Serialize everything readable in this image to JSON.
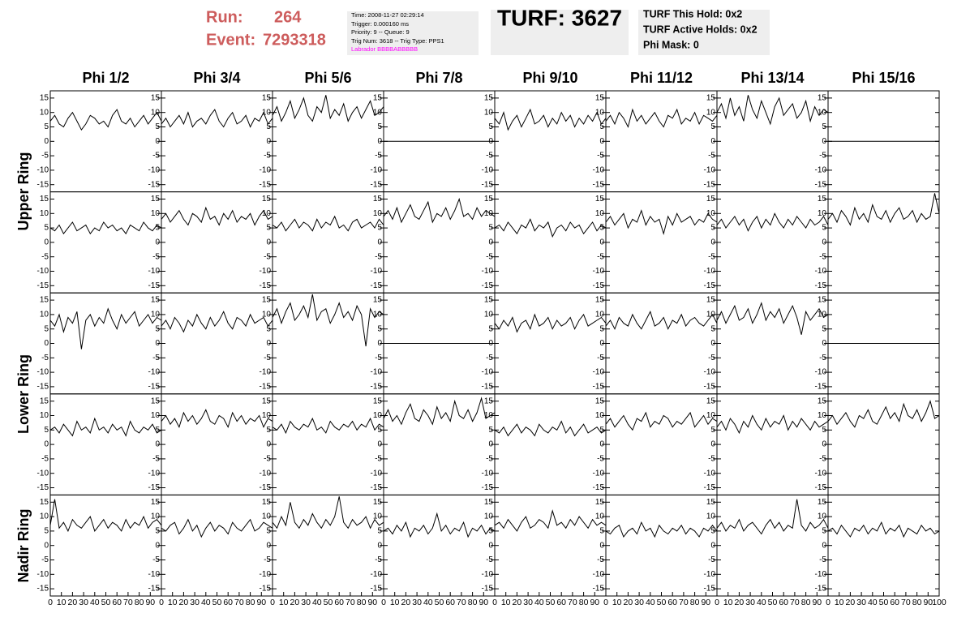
{
  "header": {
    "run_label": "Run:",
    "run": "264",
    "event_label": "Event:",
    "event": "7293318",
    "info": [
      "Time: 2008-11-27 02:29:14",
      "Trigger: 0.000160 ms",
      "Priority: 9 -- Queue: 9",
      "Trig Num: 3618 -- Trig Type: PPS1"
    ],
    "labrador": "Labrador BBBBABBBBB",
    "turf": "TURF: 3627",
    "turf_info": [
      "TURF This Hold: 0x2",
      "TURF Active Holds: 0x2",
      "Phi Mask: 0"
    ]
  },
  "chart_data": {
    "type": "line",
    "color": "#000000",
    "columns": [
      "Phi 1/2",
      "Phi 3/4",
      "Phi 5/6",
      "Phi 7/8",
      "Phi 9/10",
      "Phi 11/12",
      "Phi 13/14",
      "Phi 15/16"
    ],
    "row_labels": [
      "Upper Ring",
      "Lower Ring",
      "Nadir Ring"
    ],
    "xlim": [
      0,
      100
    ],
    "xticks": [
      0,
      10,
      20,
      30,
      40,
      50,
      60,
      70,
      80,
      90,
      100
    ],
    "ylim": [
      -17.5,
      17.5
    ],
    "yticks": [
      -15,
      -10,
      -5,
      0,
      5,
      10,
      15
    ],
    "x": [
      0,
      4,
      8,
      12,
      16,
      20,
      24,
      28,
      32,
      36,
      40,
      44,
      48,
      52,
      56,
      60,
      64,
      68,
      72,
      76,
      80,
      84,
      88,
      92,
      96,
      100
    ],
    "panels": [
      [
        [
          7,
          9,
          6,
          5,
          8,
          10,
          7,
          4,
          6,
          9,
          8,
          6,
          7,
          5,
          9,
          11,
          7,
          6,
          8,
          5,
          7,
          9,
          6,
          8,
          10,
          7
        ],
        [
          6,
          8,
          5,
          7,
          9,
          6,
          10,
          5,
          7,
          8,
          6,
          9,
          11,
          7,
          5,
          8,
          10,
          6,
          7,
          9,
          5,
          8,
          7,
          10,
          6,
          8
        ],
        [
          9,
          12,
          7,
          10,
          14,
          8,
          11,
          15,
          9,
          7,
          12,
          10,
          16,
          8,
          11,
          9,
          13,
          7,
          10,
          12,
          8,
          11,
          14,
          9,
          10,
          12
        ],
        [
          0,
          0,
          0,
          0,
          0,
          0,
          0,
          0,
          0,
          0,
          0,
          0,
          0,
          0,
          0,
          0,
          0,
          0,
          0,
          0,
          0,
          0,
          0,
          0,
          0,
          0
        ],
        [
          8,
          6,
          10,
          4,
          7,
          9,
          5,
          8,
          11,
          6,
          7,
          9,
          5,
          8,
          6,
          10,
          7,
          9,
          5,
          8,
          6,
          9,
          7,
          10,
          6,
          8
        ],
        [
          7,
          9,
          6,
          10,
          8,
          5,
          11,
          7,
          9,
          6,
          8,
          10,
          7,
          5,
          9,
          8,
          11,
          6,
          8,
          7,
          10,
          6,
          9,
          8,
          7,
          9
        ],
        [
          10,
          13,
          8,
          15,
          9,
          12,
          7,
          16,
          11,
          8,
          14,
          10,
          6,
          12,
          15,
          9,
          11,
          13,
          8,
          10,
          14,
          7,
          12,
          9,
          11,
          10
        ],
        [
          0,
          0,
          0,
          0,
          0,
          0,
          0,
          0,
          0,
          0,
          0,
          0,
          0,
          0,
          0,
          0,
          0,
          0,
          0,
          0,
          0,
          0,
          0,
          0,
          0,
          0
        ]
      ],
      [
        [
          5,
          4,
          6,
          3,
          5,
          7,
          4,
          5,
          6,
          3,
          5,
          4,
          7,
          5,
          6,
          4,
          5,
          3,
          6,
          5,
          4,
          7,
          5,
          4,
          6,
          5
        ],
        [
          8,
          10,
          7,
          9,
          11,
          8,
          6,
          10,
          9,
          7,
          12,
          8,
          9,
          6,
          10,
          8,
          11,
          7,
          9,
          8,
          10,
          6,
          9,
          11,
          8,
          9
        ],
        [
          6,
          5,
          7,
          4,
          6,
          8,
          5,
          7,
          6,
          4,
          8,
          5,
          7,
          6,
          9,
          5,
          6,
          4,
          7,
          8,
          5,
          6,
          7,
          5,
          8,
          6
        ],
        [
          9,
          11,
          8,
          12,
          7,
          10,
          13,
          9,
          8,
          11,
          14,
          7,
          10,
          9,
          12,
          8,
          11,
          15,
          9,
          10,
          8,
          12,
          9,
          11,
          10,
          9
        ],
        [
          5,
          6,
          4,
          7,
          5,
          3,
          6,
          5,
          8,
          4,
          6,
          5,
          7,
          2,
          5,
          6,
          4,
          7,
          5,
          6,
          3,
          5,
          7,
          4,
          6,
          5
        ],
        [
          7,
          9,
          6,
          8,
          10,
          5,
          8,
          7,
          11,
          6,
          9,
          7,
          8,
          3,
          9,
          6,
          10,
          7,
          8,
          9,
          6,
          8,
          7,
          10,
          8,
          7
        ],
        [
          6,
          8,
          5,
          7,
          9,
          6,
          8,
          4,
          7,
          9,
          5,
          8,
          6,
          10,
          7,
          5,
          8,
          6,
          9,
          7,
          5,
          8,
          6,
          7,
          9,
          6
        ],
        [
          8,
          10,
          7,
          11,
          9,
          6,
          12,
          8,
          10,
          7,
          13,
          9,
          8,
          11,
          7,
          10,
          12,
          8,
          9,
          11,
          7,
          10,
          8,
          9,
          17,
          10
        ]
      ],
      [
        [
          8,
          6,
          10,
          4,
          9,
          7,
          11,
          -2,
          8,
          10,
          6,
          9,
          7,
          12,
          8,
          5,
          10,
          7,
          9,
          11,
          6,
          8,
          10,
          7,
          9,
          8
        ],
        [
          6,
          8,
          5,
          9,
          7,
          4,
          8,
          6,
          10,
          7,
          5,
          9,
          6,
          8,
          11,
          7,
          5,
          9,
          8,
          6,
          10,
          7,
          8,
          9,
          6,
          8
        ],
        [
          9,
          12,
          7,
          11,
          14,
          8,
          10,
          13,
          9,
          17,
          8,
          11,
          12,
          7,
          10,
          14,
          9,
          11,
          8,
          13,
          10,
          -1,
          12,
          9,
          11,
          10
        ],
        [
          0,
          0,
          0,
          0,
          0,
          0,
          0,
          0,
          0,
          0,
          0,
          0,
          0,
          0,
          0,
          0,
          0,
          0,
          0,
          0,
          0,
          0,
          0,
          0,
          0,
          0
        ],
        [
          7,
          5,
          8,
          6,
          9,
          4,
          7,
          8,
          5,
          10,
          6,
          7,
          9,
          5,
          8,
          6,
          7,
          9,
          5,
          8,
          10,
          6,
          7,
          8,
          9,
          7
        ],
        [
          6,
          8,
          5,
          9,
          7,
          6,
          10,
          7,
          5,
          8,
          11,
          6,
          7,
          9,
          5,
          8,
          7,
          10,
          6,
          8,
          9,
          7,
          6,
          8,
          10,
          7
        ],
        [
          8,
          11,
          7,
          10,
          13,
          8,
          9,
          12,
          7,
          10,
          14,
          8,
          11,
          9,
          12,
          7,
          10,
          13,
          9,
          3,
          11,
          8,
          10,
          12,
          9,
          10
        ],
        [
          0,
          0,
          0,
          0,
          0,
          0,
          0,
          0,
          0,
          0,
          0,
          0,
          0,
          0,
          0,
          0,
          0,
          0,
          0,
          0,
          0,
          0,
          0,
          0,
          0,
          0
        ]
      ],
      [
        [
          5,
          6,
          4,
          7,
          5,
          3,
          8,
          5,
          6,
          4,
          9,
          5,
          6,
          4,
          7,
          5,
          6,
          3,
          8,
          5,
          4,
          6,
          5,
          7,
          4,
          5
        ],
        [
          8,
          10,
          7,
          9,
          6,
          11,
          8,
          10,
          7,
          9,
          12,
          8,
          7,
          10,
          9,
          6,
          11,
          8,
          10,
          7,
          9,
          8,
          10,
          6,
          9,
          8
        ],
        [
          6,
          5,
          7,
          4,
          8,
          6,
          5,
          7,
          6,
          9,
          5,
          6,
          4,
          8,
          6,
          5,
          7,
          6,
          8,
          5,
          7,
          6,
          9,
          5,
          7,
          6
        ],
        [
          9,
          12,
          8,
          10,
          7,
          11,
          14,
          9,
          8,
          12,
          10,
          7,
          13,
          9,
          11,
          8,
          15,
          10,
          9,
          12,
          8,
          11,
          16,
          9,
          10,
          11
        ],
        [
          5,
          4,
          6,
          3,
          5,
          7,
          4,
          6,
          5,
          3,
          7,
          5,
          4,
          6,
          5,
          8,
          4,
          6,
          3,
          5,
          7,
          4,
          5,
          6,
          4,
          5
        ],
        [
          7,
          9,
          6,
          8,
          10,
          7,
          5,
          9,
          8,
          11,
          6,
          8,
          7,
          10,
          9,
          6,
          8,
          7,
          9,
          11,
          6,
          8,
          10,
          7,
          9,
          8
        ],
        [
          6,
          8,
          5,
          9,
          7,
          4,
          8,
          6,
          10,
          7,
          5,
          9,
          6,
          8,
          7,
          10,
          5,
          8,
          6,
          9,
          7,
          5,
          8,
          6,
          7,
          8
        ],
        [
          8,
          10,
          7,
          9,
          11,
          8,
          6,
          10,
          9,
          12,
          8,
          7,
          10,
          13,
          9,
          11,
          8,
          14,
          10,
          9,
          12,
          8,
          11,
          15,
          9,
          10
        ]
      ],
      [
        [
          7,
          16,
          6,
          8,
          5,
          9,
          7,
          6,
          8,
          10,
          5,
          7,
          9,
          6,
          8,
          7,
          5,
          9,
          6,
          8,
          7,
          10,
          6,
          8,
          9,
          7
        ],
        [
          6,
          5,
          7,
          8,
          4,
          6,
          9,
          5,
          7,
          3,
          6,
          8,
          5,
          7,
          6,
          4,
          8,
          6,
          5,
          7,
          9,
          5,
          6,
          8,
          7,
          6
        ],
        [
          8,
          6,
          10,
          7,
          15,
          8,
          6,
          9,
          7,
          11,
          8,
          6,
          9,
          7,
          10,
          17,
          8,
          6,
          9,
          7,
          8,
          10,
          6,
          9,
          7,
          8
        ],
        [
          5,
          6,
          4,
          7,
          5,
          8,
          3,
          6,
          5,
          7,
          4,
          6,
          11,
          5,
          7,
          4,
          6,
          5,
          8,
          3,
          6,
          5,
          7,
          4,
          6,
          5
        ],
        [
          7,
          8,
          6,
          9,
          7,
          5,
          8,
          10,
          6,
          7,
          9,
          8,
          6,
          12,
          7,
          8,
          6,
          9,
          7,
          10,
          8,
          6,
          9,
          7,
          8,
          7
        ],
        [
          5,
          4,
          6,
          7,
          3,
          5,
          6,
          4,
          8,
          5,
          6,
          3,
          7,
          5,
          4,
          6,
          5,
          7,
          4,
          6,
          5,
          3,
          6,
          5,
          7,
          5
        ],
        [
          6,
          8,
          5,
          7,
          6,
          9,
          5,
          7,
          8,
          6,
          4,
          7,
          9,
          6,
          8,
          5,
          7,
          6,
          16,
          7,
          5,
          8,
          6,
          7,
          9,
          6
        ],
        [
          5,
          6,
          4,
          7,
          5,
          3,
          6,
          5,
          7,
          4,
          6,
          5,
          8,
          4,
          6,
          5,
          7,
          3,
          6,
          5,
          4,
          7,
          5,
          6,
          4,
          5
        ]
      ]
    ]
  }
}
